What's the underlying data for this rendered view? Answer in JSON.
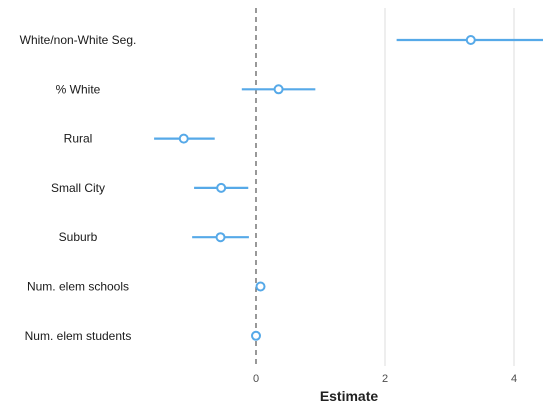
{
  "chart_data": {
    "type": "scatter",
    "subtype": "coefficient-plot",
    "title": "",
    "xlabel": "Estimate",
    "ylabel": "",
    "xlim": [
      -4,
      4.45
    ],
    "x_ticks": [
      0,
      2,
      4
    ],
    "zero_line": "dashed",
    "grid": "vertical major gridlines",
    "colors": {
      "series": "#56a9e8",
      "grid": "#dddddd",
      "zero_line": "#555555"
    },
    "categories": [
      "White/non-White Seg.",
      "% White",
      "Rural",
      "Small City",
      "Suburb",
      "Num. elem schools",
      "Num. elem students"
    ],
    "estimates": [
      3.33,
      0.35,
      -1.12,
      -0.54,
      -0.55,
      0.07,
      0.0
    ],
    "ci_low": [
      2.18,
      -0.22,
      -1.58,
      -0.96,
      -0.99,
      0.04,
      -0.02
    ],
    "ci_high": [
      4.45,
      0.92,
      -0.64,
      -0.12,
      -0.11,
      0.1,
      0.02
    ]
  }
}
